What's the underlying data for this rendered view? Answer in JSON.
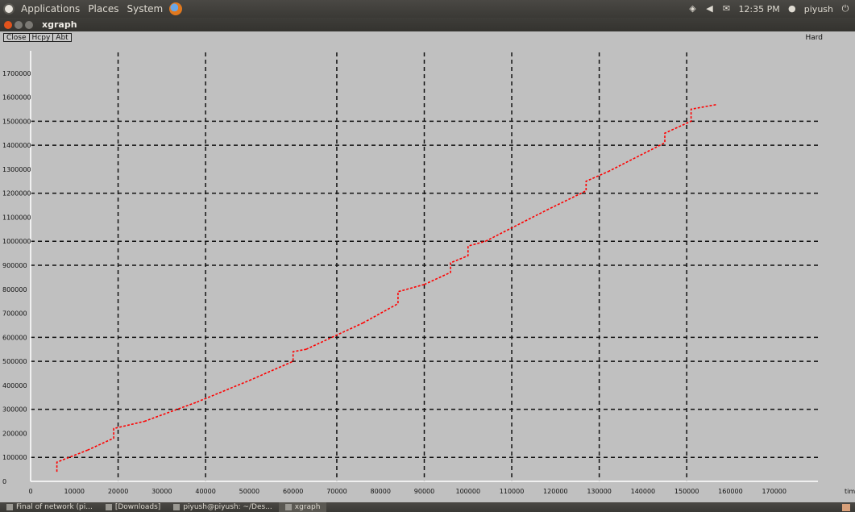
{
  "top_panel": {
    "menu": [
      "Applications",
      "Places",
      "System"
    ],
    "clock": "12:35 PM",
    "user": "piyush"
  },
  "window": {
    "title": "xgraph"
  },
  "toolbar": {
    "tabs": [
      "Close",
      "Hcpy",
      "Abt"
    ],
    "sub_label": "",
    "right_label": "Hard"
  },
  "colors": {
    "series": "#ff0000",
    "background": "#c0c0c0",
    "panel": "#3c3b37"
  },
  "chart_data": {
    "type": "scatter",
    "title": "",
    "xlabel": "time",
    "ylabel": "",
    "legend": "top-right",
    "legend_label": "",
    "grid": true,
    "xlim": [
      0,
      180000
    ],
    "ylim": [
      0,
      1800000
    ],
    "x_ticks": [
      {
        "value": 0,
        "label": "0"
      },
      {
        "value": 10000,
        "label": "10000"
      },
      {
        "value": 20000,
        "label": "20000"
      },
      {
        "value": 30000,
        "label": "30000"
      },
      {
        "value": 40000,
        "label": "40000"
      },
      {
        "value": 50000,
        "label": "50000"
      },
      {
        "value": 60000,
        "label": "60000"
      },
      {
        "value": 70000,
        "label": "70000"
      },
      {
        "value": 80000,
        "label": "80000"
      },
      {
        "value": 90000,
        "label": "90000"
      },
      {
        "value": 100000,
        "label": "100000"
      },
      {
        "value": 110000,
        "label": "110000"
      },
      {
        "value": 120000,
        "label": "120000"
      },
      {
        "value": 130000,
        "label": "130000"
      },
      {
        "value": 140000,
        "label": "140000"
      },
      {
        "value": 150000,
        "label": "150000"
      },
      {
        "value": 160000,
        "label": "160000"
      },
      {
        "value": 170000,
        "label": "170000"
      }
    ],
    "y_ticks": [
      {
        "value": 0,
        "label": "0"
      },
      {
        "value": 100000,
        "label": "100000"
      },
      {
        "value": 200000,
        "label": "200000"
      },
      {
        "value": 300000,
        "label": "300000"
      },
      {
        "value": 400000,
        "label": "400000"
      },
      {
        "value": 500000,
        "label": "500000"
      },
      {
        "value": 600000,
        "label": "600000"
      },
      {
        "value": 700000,
        "label": "700000"
      },
      {
        "value": 800000,
        "label": "800000"
      },
      {
        "value": 900000,
        "label": "900000"
      },
      {
        "value": 1000000,
        "label": "1000000"
      },
      {
        "value": 1100000,
        "label": "1100000"
      },
      {
        "value": 1200000,
        "label": "1200000"
      },
      {
        "value": 1300000,
        "label": "1300000"
      },
      {
        "value": 1400000,
        "label": "1400000"
      },
      {
        "value": 1500000,
        "label": "1500000"
      },
      {
        "value": 1600000,
        "label": "1600000"
      },
      {
        "value": 1700000,
        "label": "1700000"
      }
    ],
    "grid_x": [
      20000,
      40000,
      70000,
      90000,
      110000,
      130000,
      150000
    ],
    "grid_y": [
      100000,
      300000,
      500000,
      600000,
      900000,
      1000000,
      1200000,
      1400000,
      1500000
    ],
    "series": [
      {
        "name": "",
        "segments": [
          [
            [
              6000,
              40000
            ],
            [
              6000,
              80000
            ],
            [
              13000,
              130000
            ]
          ],
          [
            [
              13000,
              130000
            ],
            [
              19000,
              180000
            ],
            [
              19000,
              220000
            ],
            [
              26000,
              250000
            ]
          ],
          [
            [
              26000,
              250000
            ],
            [
              38000,
              330000
            ]
          ],
          [
            [
              38000,
              330000
            ],
            [
              50000,
              420000
            ]
          ],
          [
            [
              50000,
              420000
            ],
            [
              60000,
              500000
            ],
            [
              60000,
              540000
            ],
            [
              63000,
              550000
            ]
          ],
          [
            [
              63000,
              550000
            ],
            [
              76000,
              660000
            ]
          ],
          [
            [
              76000,
              660000
            ],
            [
              84000,
              740000
            ],
            [
              84000,
              790000
            ],
            [
              90000,
              820000
            ]
          ],
          [
            [
              90000,
              820000
            ],
            [
              96000,
              870000
            ],
            [
              96000,
              910000
            ],
            [
              100000,
              940000
            ],
            [
              100000,
              980000
            ],
            [
              104000,
              1000000
            ]
          ],
          [
            [
              104000,
              1000000
            ],
            [
              118000,
              1130000
            ]
          ],
          [
            [
              118000,
              1130000
            ],
            [
              127000,
              1210000
            ],
            [
              127000,
              1250000
            ],
            [
              132000,
              1290000
            ]
          ],
          [
            [
              132000,
              1290000
            ],
            [
              145000,
              1410000
            ],
            [
              145000,
              1450000
            ],
            [
              151000,
              1500000
            ],
            [
              151000,
              1550000
            ],
            [
              157000,
              1570000
            ]
          ]
        ]
      }
    ]
  },
  "taskbar": {
    "tasks": [
      "Final of network (pi...",
      "[Downloads]",
      "piyush@piyush: ~/Des...",
      "xgraph"
    ]
  }
}
